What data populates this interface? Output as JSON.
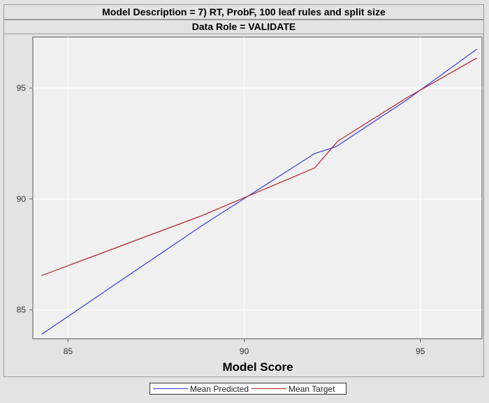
{
  "header": {
    "title": "Model Description = 7) RT, ProbF, 100 leaf rules and split size",
    "subtitle": "Data Role = VALIDATE"
  },
  "chart_data": {
    "type": "line",
    "title": "Model Description = 7) RT, ProbF, 100 leaf rules and split size",
    "subtitle": "Data Role = VALIDATE",
    "xlabel": "Model Score",
    "ylabel": "",
    "xlim": [
      84,
      96.75
    ],
    "ylim": [
      83.7,
      97.3
    ],
    "xticks": [
      85,
      90,
      95
    ],
    "yticks": [
      85,
      90,
      95
    ],
    "grid": true,
    "legend_position": "bottom-center",
    "series": [
      {
        "name": "Mean Predicted",
        "color": "#3a3ae0",
        "x": [
          84.25,
          88.8,
          92.0,
          92.6,
          94.6,
          96.6
        ],
        "y": [
          83.9,
          88.8,
          92.05,
          92.35,
          94.45,
          96.75
        ]
      },
      {
        "name": "Mean Target",
        "color": "#b0202a",
        "x": [
          84.25,
          88.8,
          92.0,
          92.65,
          94.6,
          96.6
        ],
        "y": [
          86.55,
          89.25,
          91.4,
          92.6,
          94.55,
          96.35
        ]
      }
    ]
  }
}
